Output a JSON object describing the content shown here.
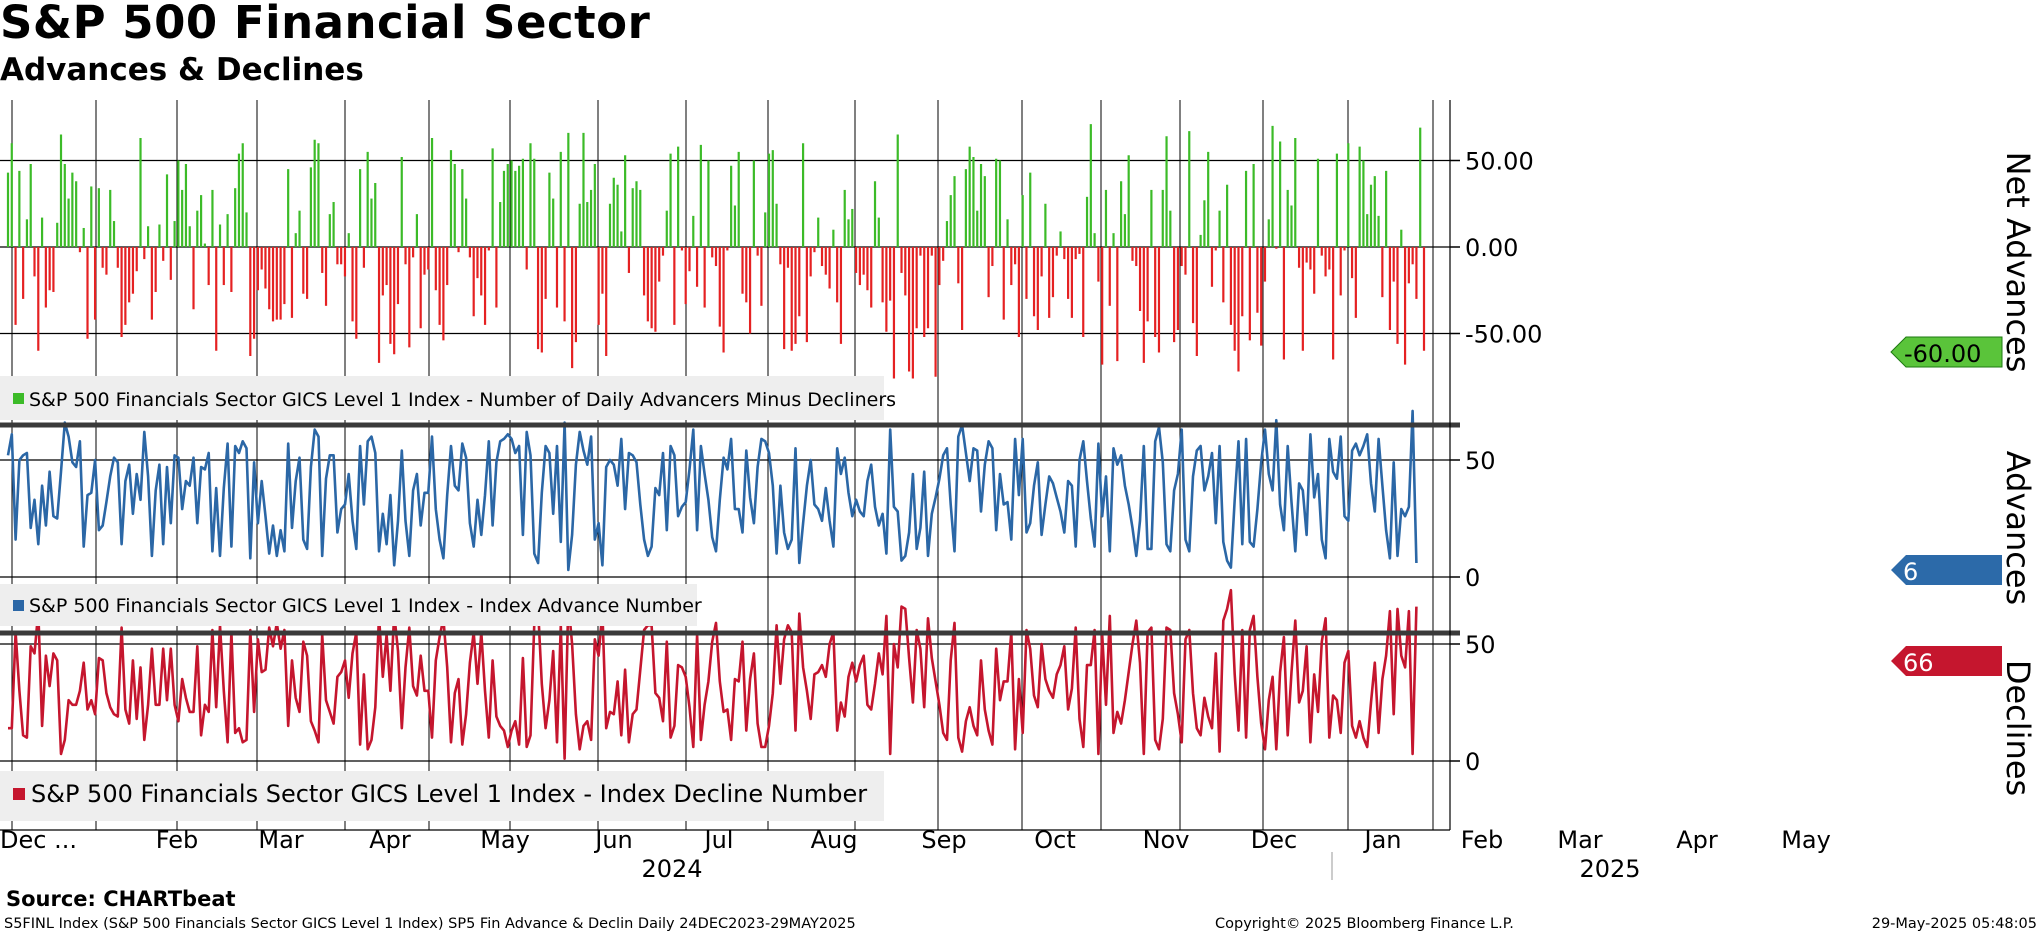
{
  "header": {
    "title": "S&P 500 Financial Sector",
    "subtitle": "Advances & Declines"
  },
  "colors": {
    "positive": "#3cbb28",
    "negative": "#e52122",
    "advances_line": "#2b67a6",
    "declines_line": "#c5162e",
    "grid": "#000000",
    "legend_bg": "#eeeeee",
    "net_tag": "#5ac43a",
    "adv_tag": "#2c6aa9",
    "dec_tag": "#c5162e"
  },
  "chart_data": {
    "type": "bar",
    "x_period": "24DEC2023-29MAY2025",
    "x_month_labels": [
      "Dec ...",
      "Feb",
      "Mar",
      "Apr",
      "May",
      "Jun",
      "Jul",
      "Aug",
      "Sep",
      "Oct",
      "Nov",
      "Dec",
      "Jan",
      "Feb",
      "Mar",
      "Apr",
      "May"
    ],
    "x_year_labels": [
      "2024",
      "2025"
    ],
    "panels": [
      {
        "name": "Net Advances",
        "type": "bar",
        "ylabel": "Net Advances",
        "ylim": [
          -100,
          90
        ],
        "yticks": [
          50,
          0,
          -50
        ],
        "ytick_labels": [
          "50.00",
          "0.00",
          "-50.00"
        ],
        "last_value_label": "-60.00",
        "legend": "S&P 500 Financials Sector GICS Level 1 Index - Number of Daily Advancers Minus Decliners",
        "values": [
          43,
          60,
          -45,
          44,
          -30,
          16,
          48,
          -17,
          -60,
          17,
          -35,
          -25,
          -26,
          14,
          65,
          48,
          28,
          43,
          38,
          -3,
          11,
          -53,
          35,
          -42,
          34,
          -12,
          -16,
          33,
          15,
          -12,
          -52,
          -45,
          -32,
          -27,
          -14,
          63,
          -7,
          12,
          -42,
          -26,
          13,
          -8,
          42,
          -19,
          15,
          50,
          33,
          48,
          12,
          -36,
          21,
          30,
          2,
          -22,
          33,
          -60,
          13,
          -22,
          19,
          -26,
          34,
          54,
          60,
          20,
          -63,
          -53,
          -25,
          -13,
          -24,
          -36,
          -43,
          -42,
          -42,
          -33,
          45,
          -41,
          8,
          21,
          -27,
          -30,
          46,
          62,
          60,
          -15,
          -34,
          19,
          26,
          -10,
          -10,
          -17,
          8,
          -43,
          -53,
          45,
          -12,
          55,
          28,
          37,
          -67,
          -28,
          -22,
          -56,
          -62,
          -33,
          52,
          -10,
          -58,
          -6,
          19,
          -47,
          -16,
          -13,
          63,
          -25,
          -45,
          -54,
          -22,
          56,
          48,
          -3,
          45,
          28,
          -6,
          -40,
          -18,
          -28,
          -45,
          -2,
          57,
          -35,
          26,
          44,
          48,
          50,
          44,
          47,
          51,
          -13,
          60,
          51,
          -59,
          -61,
          -30,
          43,
          28,
          -35,
          55,
          -43,
          66,
          -70,
          -55,
          25,
          66,
          26,
          33,
          48,
          -45,
          -27,
          -63,
          25,
          40,
          36,
          9,
          53,
          -15,
          34,
          38,
          33,
          -28,
          -43,
          -47,
          -49,
          -20,
          -5,
          21,
          54,
          -45,
          58,
          -2,
          -33,
          -14,
          18,
          -23,
          59,
          -35,
          50,
          -6,
          -11,
          -46,
          -61,
          -2,
          47,
          24,
          55,
          -27,
          -32,
          -50,
          50,
          -5,
          -34,
          20,
          54,
          56,
          25,
          -10,
          -59,
          -12,
          -60,
          -56,
          -40,
          60,
          -55,
          -17,
          -3,
          17,
          -11,
          -16,
          -24,
          10,
          -32,
          -56,
          33,
          16,
          22,
          -15,
          -22,
          -16,
          -25,
          -35,
          38,
          17,
          -32,
          -49,
          -31,
          -76,
          65,
          -15,
          -28,
          -72,
          -76,
          -47,
          -5,
          -52,
          -47,
          -5,
          -75,
          -22,
          -8,
          15,
          30,
          41,
          -21,
          -48,
          45,
          58,
          52,
          21,
          48,
          41,
          -29,
          -11,
          51,
          50,
          -42,
          16,
          -22,
          -10,
          -52,
          30,
          -30,
          43,
          -40,
          -48,
          -17,
          25,
          -41,
          -29,
          -5,
          9,
          -7,
          -30,
          -41,
          -7,
          -4,
          -52,
          29,
          71,
          8,
          -20,
          -68,
          33,
          -34,
          8,
          -66,
          38,
          19,
          53,
          -8,
          -11,
          -37,
          -67,
          -43,
          33,
          -52,
          -61,
          33,
          64,
          21,
          -55,
          -48,
          -11,
          -16,
          67,
          -44,
          -63,
          7,
          27,
          55,
          -23,
          -2,
          21,
          -32,
          36,
          -45,
          -60,
          -72,
          -40,
          44,
          -54,
          48,
          -38,
          -57,
          -20,
          16,
          70,
          -1,
          61,
          -65,
          33,
          24,
          63,
          -12,
          -60,
          -9,
          -13,
          -27,
          51,
          -5,
          -17,
          -13,
          -65,
          54,
          -28,
          -2,
          60,
          -18,
          -41,
          58,
          50,
          19,
          36,
          41,
          18,
          -29,
          44,
          -48,
          -20,
          -56,
          10,
          -68,
          -21,
          -10,
          -30,
          69,
          -60
        ]
      },
      {
        "name": "Advances",
        "type": "line",
        "ylabel": "Advances",
        "ylim": [
          -5,
          75
        ],
        "yticks": [
          50,
          0
        ],
        "ytick_labels": [
          "50",
          "0"
        ],
        "last_value_label": "6",
        "legend": "S&P 500 Financials Sector GICS Level 1 Index - Index Advance Number",
        "values": [
          52,
          61,
          16,
          50,
          52,
          53,
          21,
          33,
          14,
          39,
          22,
          45,
          26,
          25,
          45,
          66,
          60,
          49,
          47,
          58,
          13,
          35,
          36,
          50,
          20,
          22,
          32,
          43,
          51,
          49,
          14,
          41,
          48,
          27,
          44,
          33,
          62,
          43,
          9,
          37,
          48,
          14,
          47,
          23,
          52,
          51,
          29,
          41,
          39,
          51,
          23,
          47,
          46,
          53,
          11,
          38,
          9,
          38,
          57,
          13,
          56,
          53,
          58,
          55,
          8,
          49,
          23,
          41,
          26,
          10,
          22,
          9,
          20,
          11,
          57,
          21,
          41,
          51,
          16,
          12,
          47,
          63,
          60,
          9,
          42,
          52,
          52,
          19,
          29,
          31,
          44,
          24,
          12,
          56,
          31,
          58,
          60,
          53,
          11,
          27,
          14,
          35,
          5,
          24,
          54,
          24,
          9,
          37,
          44,
          22,
          36,
          36,
          60,
          29,
          16,
          8,
          35,
          56,
          39,
          37,
          57,
          51,
          23,
          13,
          33,
          18,
          35,
          58,
          22,
          49,
          58,
          59,
          61,
          59,
          53,
          56,
          18,
          62,
          52,
          10,
          6,
          36,
          56,
          53,
          27,
          56,
          15,
          66,
          3,
          18,
          48,
          62,
          54,
          48,
          60,
          16,
          23,
          5,
          47,
          50,
          48,
          39,
          59,
          29,
          53,
          52,
          49,
          31,
          16,
          9,
          13,
          38,
          35,
          53,
          20,
          56,
          52,
          26,
          30,
          32,
          46,
          63,
          20,
          56,
          44,
          33,
          17,
          11,
          33,
          51,
          46,
          59,
          29,
          29,
          19,
          54,
          34,
          23,
          47,
          59,
          58,
          53,
          39,
          10,
          39,
          19,
          12,
          16,
          55,
          6,
          23,
          39,
          50,
          31,
          29,
          24,
          38,
          24,
          13,
          55,
          44,
          51,
          36,
          26,
          33,
          28,
          26,
          41,
          48,
          30,
          22,
          27,
          10,
          63,
          30,
          28,
          7,
          9,
          19,
          44,
          12,
          21,
          45,
          9,
          27,
          34,
          42,
          52,
          55,
          31,
          11,
          60,
          65,
          53,
          41,
          55,
          54,
          28,
          48,
          58,
          55,
          20,
          44,
          31,
          32,
          16,
          59,
          35,
          59,
          19,
          23,
          39,
          49,
          18,
          31,
          43,
          40,
          34,
          28,
          19,
          41,
          39,
          13,
          50,
          58,
          41,
          25,
          13,
          57,
          26,
          43,
          11,
          55,
          48,
          52,
          39,
          31,
          21,
          9,
          24,
          56,
          12,
          12,
          58,
          64,
          49,
          14,
          11,
          37,
          44,
          63,
          16,
          11,
          43,
          54,
          56,
          37,
          43,
          53,
          23,
          56,
          15,
          7,
          4,
          33,
          58,
          14,
          59,
          15,
          13,
          29,
          49,
          63,
          44,
          37,
          67,
          31,
          20,
          56,
          32,
          11,
          40,
          37,
          18,
          61,
          34,
          44,
          16,
          8,
          59,
          45,
          42,
          60,
          26,
          24,
          54,
          57,
          52,
          56,
          61,
          40,
          28,
          59,
          39,
          20,
          8,
          49,
          9,
          29,
          26,
          30,
          71,
          6
        ]
      },
      {
        "name": "Declines",
        "type": "line",
        "ylabel": "Declines",
        "ylim": [
          -5,
          75
        ],
        "yticks": [
          50,
          0
        ],
        "ytick_labels": [
          "50",
          "0"
        ],
        "last_value_label": "66",
        "legend": "S&P 500 Financials Sector GICS Level 1 Index - Index Decline Number",
        "values": [
          14,
          14,
          55,
          30,
          11,
          10,
          49,
          46,
          64,
          15,
          45,
          32,
          46,
          43,
          3,
          9,
          26,
          24,
          24,
          30,
          42,
          22,
          26,
          20,
          44,
          43,
          29,
          23,
          20,
          19,
          57,
          22,
          16,
          43,
          18,
          40,
          9,
          24,
          48,
          24,
          24,
          48,
          26,
          48,
          24,
          17,
          35,
          27,
          21,
          21,
          49,
          11,
          24,
          21,
          56,
          23,
          58,
          30,
          8,
          55,
          12,
          14,
          8,
          9,
          56,
          21,
          52,
          38,
          39,
          57,
          49,
          59,
          48,
          56,
          15,
          43,
          27,
          21,
          51,
          45,
          17,
          13,
          8,
          54,
          26,
          21,
          16,
          36,
          38,
          43,
          27,
          46,
          55,
          7,
          37,
          5,
          9,
          23,
          62,
          36,
          54,
          30,
          63,
          47,
          14,
          40,
          57,
          32,
          28,
          45,
          30,
          30,
          10,
          43,
          53,
          61,
          40,
          8,
          29,
          35,
          7,
          20,
          42,
          55,
          33,
          55,
          30,
          10,
          43,
          19,
          15,
          13,
          6,
          13,
          17,
          7,
          44,
          6,
          11,
          59,
          65,
          33,
          14,
          26,
          47,
          8,
          58,
          1,
          68,
          50,
          20,
          5,
          15,
          17,
          9,
          52,
          45,
          64,
          14,
          21,
          20,
          34,
          11,
          39,
          8,
          20,
          22,
          39,
          56,
          58,
          58,
          29,
          27,
          17,
          51,
          10,
          15,
          41,
          40,
          36,
          23,
          6,
          54,
          9,
          24,
          34,
          51,
          59,
          34,
          21,
          22,
          9,
          35,
          34,
          51,
          13,
          35,
          46,
          16,
          6,
          6,
          15,
          29,
          58,
          33,
          52,
          58,
          55,
          13,
          63,
          40,
          30,
          18,
          37,
          38,
          41,
          36,
          50,
          55,
          13,
          25,
          19,
          36,
          42,
          34,
          41,
          45,
          24,
          22,
          33,
          46,
          37,
          62,
          3,
          50,
          40,
          66,
          65,
          44,
          25,
          56,
          48,
          23,
          61,
          44,
          34,
          24,
          12,
          9,
          43,
          59,
          10,
          4,
          17,
          23,
          15,
          11,
          43,
          22,
          13,
          7,
          48,
          26,
          34,
          34,
          55,
          5,
          35,
          12,
          56,
          48,
          28,
          23,
          50,
          35,
          30,
          27,
          37,
          41,
          49,
          22,
          31,
          57,
          18,
          6,
          41,
          41,
          56,
          3,
          54,
          24,
          62,
          12,
          21,
          16,
          26,
          38,
          50,
          60,
          42,
          3,
          55,
          57,
          9,
          5,
          18,
          57,
          56,
          29,
          20,
          8,
          52,
          56,
          29,
          14,
          11,
          27,
          19,
          14,
          46,
          4,
          60,
          65,
          73,
          37,
          13,
          56,
          10,
          56,
          62,
          36,
          16,
          5,
          26,
          36,
          5,
          38,
          53,
          11,
          38,
          60,
          25,
          30,
          49,
          8,
          37,
          21,
          51,
          61,
          10,
          28,
          26,
          12,
          42,
          47,
          15,
          10,
          17,
          10,
          6,
          25,
          42,
          12,
          35,
          45,
          64,
          20,
          65,
          45,
          40,
          64,
          3,
          66
        ]
      }
    ]
  },
  "footer": {
    "source": "Source: CHARTbeat",
    "left": "S5FINL Index (S&P 500 Financials Sector GICS Level 1 Index) SP5 Fin Advance & Declin  Daily 24DEC2023-29MAY2025",
    "center": "Copyright© 2025 Bloomberg Finance L.P.",
    "right": "29-May-2025 05:48:05"
  }
}
